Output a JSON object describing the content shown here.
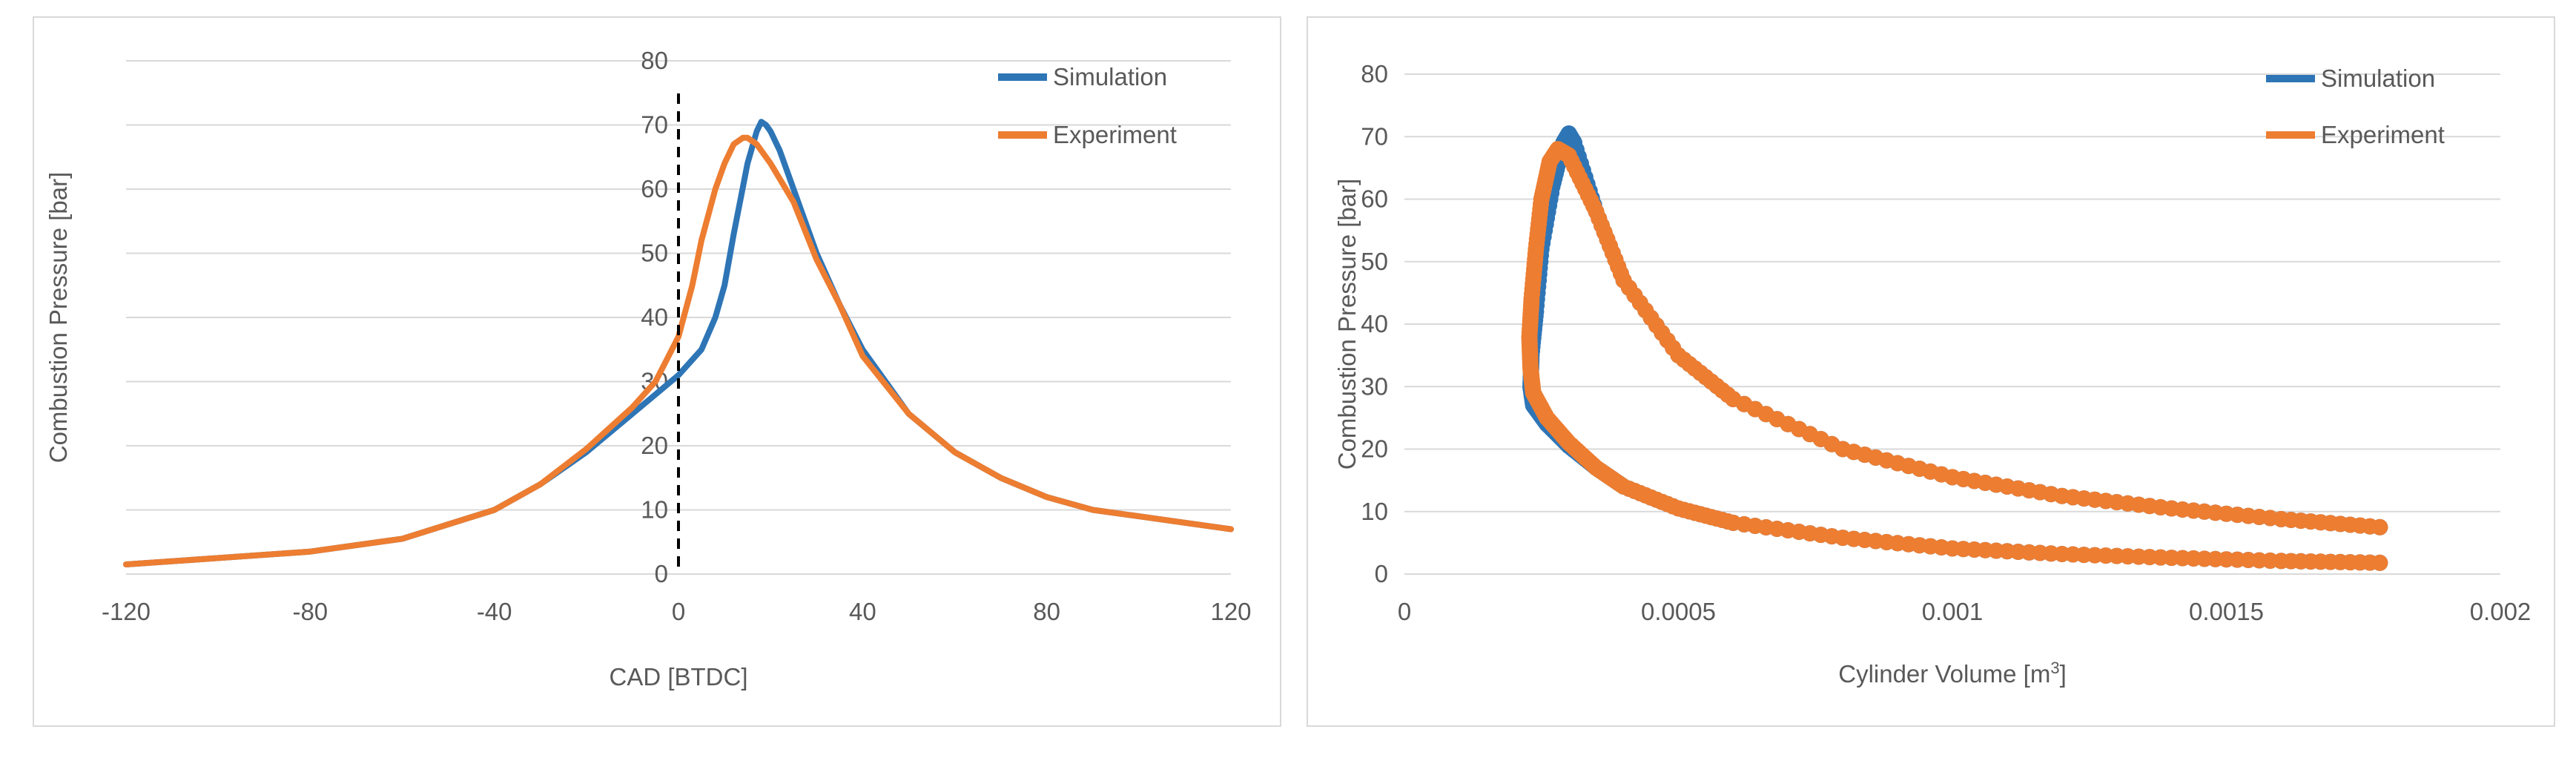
{
  "chart_data": [
    {
      "type": "line",
      "title": "",
      "xlabel": "CAD [BTDC]",
      "ylabel": "Combustion Pressure [bar]",
      "xlim": [
        -120,
        120
      ],
      "ylim": [
        0,
        80
      ],
      "x_ticks": [
        -120,
        -80,
        -40,
        0,
        40,
        80,
        120
      ],
      "y_ticks": [
        0,
        10,
        20,
        30,
        40,
        50,
        60,
        70,
        80
      ],
      "grid": true,
      "legend_position": "top-right",
      "annotations": [
        {
          "type": "vertical-dashed-line",
          "x": 0
        }
      ],
      "series": [
        {
          "name": "Simulation",
          "color": "#2e75b6",
          "x": [
            -120,
            -100,
            -80,
            -60,
            -40,
            -30,
            -20,
            -10,
            -5,
            0,
            5,
            8,
            10,
            12,
            15,
            17,
            18,
            19,
            20,
            22,
            25,
            30,
            35,
            40,
            50,
            60,
            70,
            80,
            90,
            100,
            110,
            120
          ],
          "y": [
            1.5,
            2.5,
            3.5,
            5.5,
            10,
            14,
            19,
            25,
            28,
            31,
            35,
            40,
            45,
            53,
            64,
            69,
            70.5,
            70,
            69,
            66,
            60,
            50,
            42,
            35,
            25,
            19,
            15,
            12,
            10,
            9,
            8,
            7
          ]
        },
        {
          "name": "Experiment",
          "color": "#ed7d31",
          "x": [
            -120,
            -100,
            -80,
            -60,
            -40,
            -30,
            -20,
            -10,
            -5,
            0,
            3,
            5,
            8,
            10,
            12,
            14,
            15,
            17,
            20,
            25,
            30,
            35,
            40,
            50,
            60,
            70,
            80,
            90,
            100,
            110,
            120
          ],
          "y": [
            1.5,
            2.5,
            3.5,
            5.5,
            10,
            14,
            19.5,
            26,
            30,
            37,
            45,
            52,
            60,
            64,
            67,
            68,
            68,
            67,
            64,
            58,
            49,
            42,
            34,
            25,
            19,
            15,
            12,
            10,
            9,
            8,
            7
          ]
        }
      ]
    },
    {
      "type": "scatter",
      "title": "",
      "xlabel_prefix": "Cylinder Volume [m",
      "xlabel_sup": "3",
      "xlabel_suffix": "]",
      "ylabel": "Combustion Pressure [bar]",
      "xlim": [
        0,
        0.002
      ],
      "ylim": [
        0,
        80
      ],
      "x_ticks": [
        "0",
        "0.0005",
        "0.001",
        "0.0015",
        "0.002"
      ],
      "y_ticks": [
        0,
        10,
        20,
        30,
        40,
        50,
        60,
        70,
        80
      ],
      "grid": true,
      "legend_position": "top-right",
      "series": [
        {
          "name": "Simulation",
          "color": "#2e75b6",
          "x": [
            0.00178,
            0.0016,
            0.0014,
            0.0012,
            0.001,
            0.0008,
            0.0006,
            0.0005,
            0.0004,
            0.00035,
            0.0003,
            0.00026,
            0.000235,
            0.00023,
            0.000232,
            0.00024,
            0.00025,
            0.00027,
            0.00029,
            0.0003,
            0.00031,
            0.00035,
            0.0004,
            0.0005,
            0.0006,
            0.0008,
            0.001,
            0.0012,
            0.0014,
            0.0016,
            0.00178
          ],
          "y": [
            1.8,
            2.1,
            2.6,
            3.2,
            4.1,
            5.8,
            8.2,
            10.5,
            14,
            17,
            20.5,
            24,
            27,
            30,
            35,
            42,
            52,
            62,
            69,
            70.5,
            69,
            58,
            47,
            35,
            28,
            20,
            15.5,
            12.5,
            10.5,
            8.8,
            7.5
          ]
        },
        {
          "name": "Experiment",
          "color": "#ed7d31",
          "x": [
            0.00178,
            0.0016,
            0.0014,
            0.0012,
            0.001,
            0.0008,
            0.0006,
            0.0005,
            0.0004,
            0.00035,
            0.0003,
            0.00026,
            0.000235,
            0.00023,
            0.000228,
            0.000232,
            0.00024,
            0.00025,
            0.000265,
            0.00028,
            0.0003,
            0.00035,
            0.0004,
            0.0005,
            0.0006,
            0.0008,
            0.001,
            0.0012,
            0.0014,
            0.0016,
            0.00178
          ],
          "y": [
            1.8,
            2.1,
            2.6,
            3.2,
            4.1,
            5.8,
            8.2,
            10.5,
            14,
            17,
            21,
            25,
            29,
            33,
            38,
            44,
            52,
            60,
            66,
            68,
            67,
            58,
            47,
            35,
            28,
            20,
            15.5,
            12.5,
            10.5,
            8.8,
            7.5
          ]
        }
      ]
    }
  ]
}
